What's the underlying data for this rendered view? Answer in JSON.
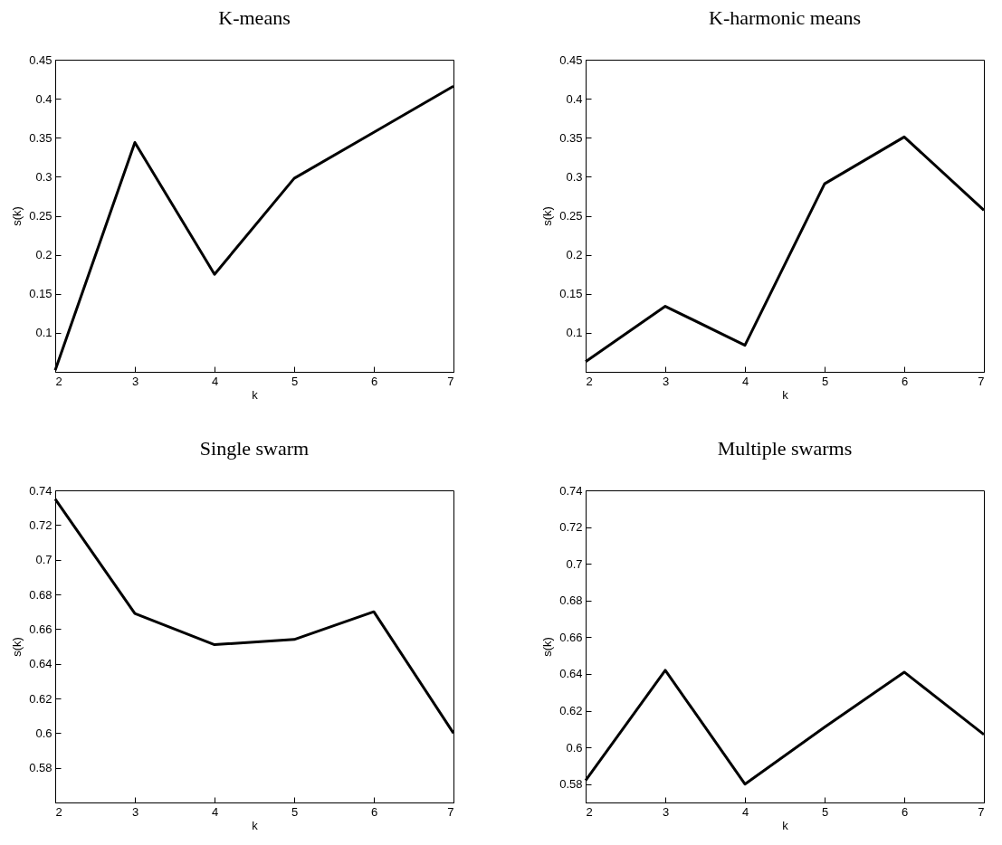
{
  "chart_data": [
    {
      "type": "line",
      "title": "K-means",
      "xlabel": "k",
      "ylabel": "s(k)",
      "x": [
        2,
        3,
        4,
        5,
        6,
        7
      ],
      "xlim": [
        2,
        7
      ],
      "xticks": [
        2,
        3,
        4,
        5,
        6,
        7
      ],
      "ylim": [
        0.05,
        0.45
      ],
      "yticks": [
        0.1,
        0.15,
        0.2,
        0.25,
        0.3,
        0.35,
        0.4,
        0.45
      ],
      "grid": false,
      "marker": "none",
      "series": [
        {
          "color": "#000000",
          "values": [
            0.052,
            0.344,
            0.175,
            0.298,
            0.357,
            0.416
          ]
        }
      ]
    },
    {
      "type": "line",
      "title": "K-harmonic means",
      "xlabel": "k",
      "ylabel": "s(k)",
      "x": [
        2,
        3,
        4,
        5,
        6,
        7
      ],
      "xlim": [
        2,
        7
      ],
      "xticks": [
        2,
        3,
        4,
        5,
        6,
        7
      ],
      "ylim": [
        0.05,
        0.45
      ],
      "yticks": [
        0.1,
        0.15,
        0.2,
        0.25,
        0.3,
        0.35,
        0.4,
        0.45
      ],
      "grid": false,
      "marker": "none",
      "series": [
        {
          "color": "#000000",
          "values": [
            0.063,
            0.134,
            0.084,
            0.291,
            0.351,
            0.257
          ]
        }
      ]
    },
    {
      "type": "line",
      "title": "Single swarm",
      "xlabel": "k",
      "ylabel": "s(k)",
      "x": [
        2,
        3,
        4,
        5,
        6,
        7
      ],
      "xlim": [
        2,
        7
      ],
      "xticks": [
        2,
        3,
        4,
        5,
        6,
        7
      ],
      "ylim": [
        0.56,
        0.74
      ],
      "yticks": [
        0.58,
        0.6,
        0.62,
        0.64,
        0.66,
        0.68,
        0.7,
        0.72,
        0.74
      ],
      "grid": false,
      "marker": "none",
      "series": [
        {
          "color": "#000000",
          "values": [
            0.735,
            0.669,
            0.651,
            0.654,
            0.67,
            0.6
          ]
        }
      ]
    },
    {
      "type": "line",
      "title": "Multiple swarms",
      "xlabel": "k",
      "ylabel": "s(k)",
      "x": [
        2,
        3,
        4,
        5,
        6,
        7
      ],
      "xlim": [
        2,
        7
      ],
      "xticks": [
        2,
        3,
        4,
        5,
        6,
        7
      ],
      "ylim": [
        0.57,
        0.74
      ],
      "yticks": [
        0.58,
        0.6,
        0.62,
        0.64,
        0.66,
        0.68,
        0.7,
        0.72,
        0.74
      ],
      "grid": false,
      "marker": "none",
      "series": [
        {
          "color": "#000000",
          "values": [
            0.582,
            0.642,
            0.58,
            0.611,
            0.641,
            0.607
          ]
        }
      ]
    }
  ]
}
